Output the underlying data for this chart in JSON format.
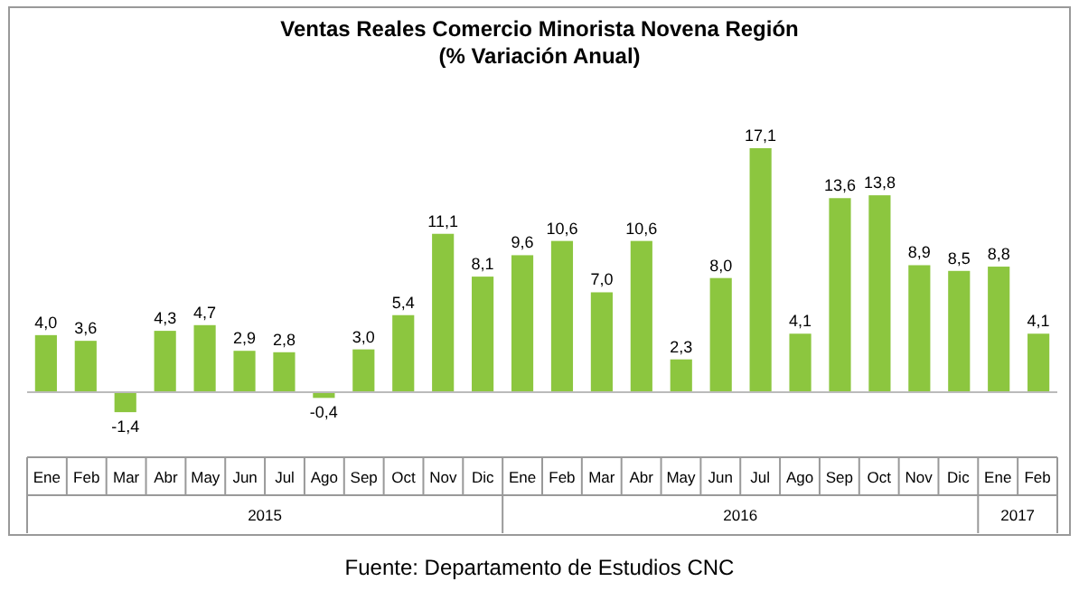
{
  "chart_data": {
    "type": "bar",
    "title": "Ventas Reales Comercio Minorista Novena Región",
    "subtitle": "(% Variación Anual)",
    "categories": [
      "Ene",
      "Feb",
      "Mar",
      "Abr",
      "May",
      "Jun",
      "Jul",
      "Ago",
      "Sep",
      "Oct",
      "Nov",
      "Dic",
      "Ene",
      "Feb",
      "Mar",
      "Abr",
      "May",
      "Jun",
      "Jul",
      "Ago",
      "Sep",
      "Oct",
      "Nov",
      "Dic",
      "Ene",
      "Feb"
    ],
    "values": [
      4.0,
      3.6,
      -1.4,
      4.3,
      4.7,
      2.9,
      2.8,
      -0.4,
      3.0,
      5.4,
      11.1,
      8.1,
      9.6,
      10.6,
      7.0,
      10.6,
      2.3,
      8.0,
      17.1,
      4.1,
      13.6,
      13.8,
      8.9,
      8.5,
      8.8,
      4.1
    ],
    "value_labels": [
      "4,0",
      "3,6",
      "-1,4",
      "4,3",
      "4,7",
      "2,9",
      "2,8",
      "-0,4",
      "3,0",
      "5,4",
      "11,1",
      "8,1",
      "9,6",
      "10,6",
      "7,0",
      "10,6",
      "2,3",
      "8,0",
      "17,1",
      "4,1",
      "13,6",
      "13,8",
      "8,9",
      "8,5",
      "8,8",
      "4,1"
    ],
    "color": "#8cc63f",
    "annotations": [
      "2015",
      "2016",
      "2017",
      "Fuente: Departamento de Estudios CNC"
    ]
  }
}
